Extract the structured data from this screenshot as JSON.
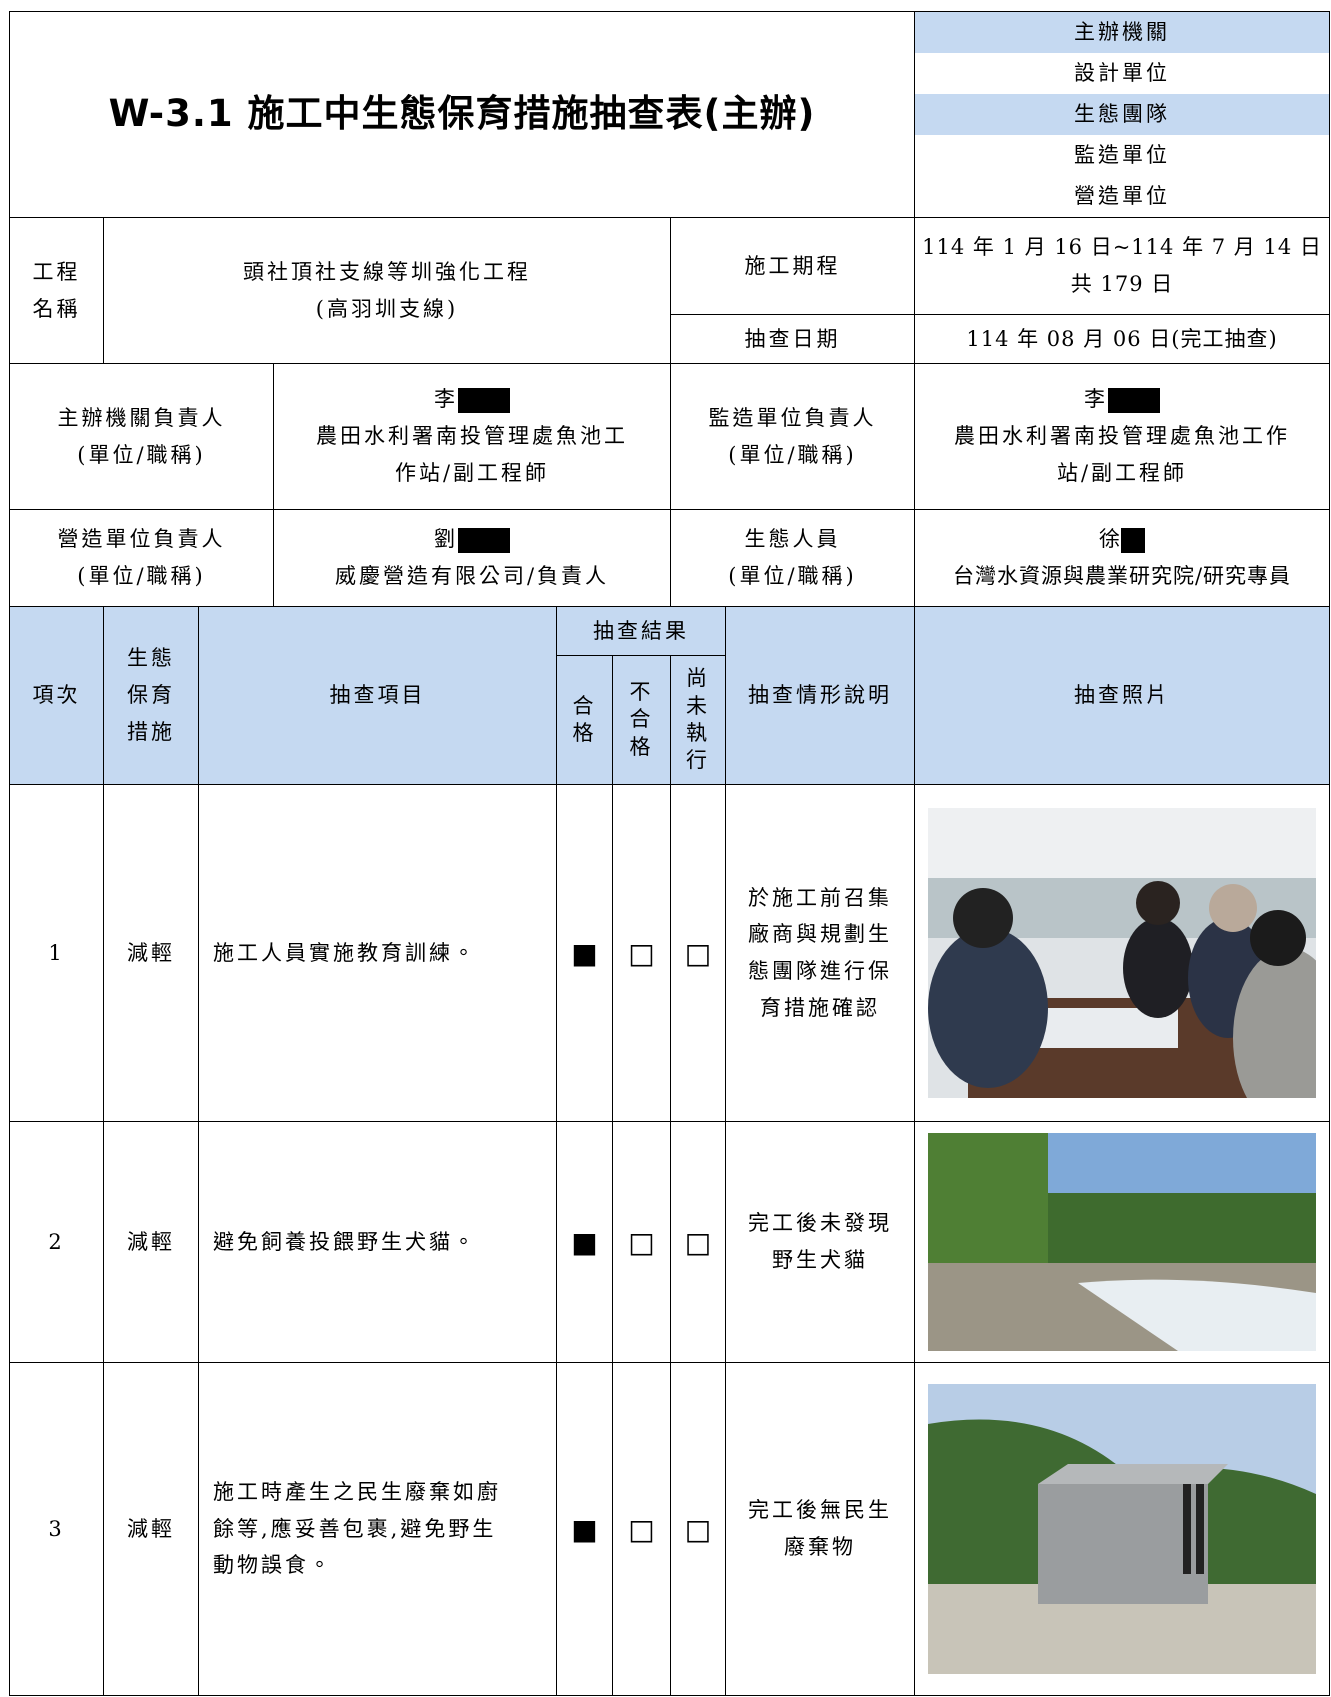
{
  "header": {
    "title": "W-3.1 施工中生態保育措施抽查表(主辦)",
    "units": [
      "主辦機關",
      "設計單位",
      "生態團隊",
      "監造單位",
      "營造單位"
    ]
  },
  "info": {
    "project_name_label": [
      "工程",
      "名稱"
    ],
    "project_name": [
      "頭社頂社支線等圳強化工程",
      "(高羽圳支線)"
    ],
    "period_label": "施工期程",
    "period": [
      "114 年 1 月 16 日~114 年 7 月 14 日",
      "共 179 日"
    ],
    "inspection_date_label": "抽查日期",
    "inspection_date": "114 年 08 月 06 日(完工抽查)",
    "people": [
      {
        "label": [
          "主辦機關負責人",
          "(單位/職稱)"
        ],
        "value": [
          "李",
          "農田水利署南投管理處魚池工",
          "作站/副工程師"
        ]
      },
      {
        "label": [
          "監造單位負責人",
          "(單位/職稱)"
        ],
        "value": [
          "李",
          "農田水利署南投管理處魚池工作",
          "站/副工程師"
        ]
      },
      {
        "label": [
          "營造單位負責人",
          "(單位/職稱)"
        ],
        "value": [
          "劉",
          "威慶營造有限公司/負責人"
        ]
      },
      {
        "label": [
          "生態人員",
          "(單位/職稱)"
        ],
        "value": [
          "徐",
          "台灣水資源與農業研究院/研究專員"
        ]
      }
    ]
  },
  "table": {
    "headers": {
      "item_no": "項次",
      "measure": [
        "生態",
        "保育",
        "措施"
      ],
      "check_item": "抽查項目",
      "result": "抽查結果",
      "pass": [
        "合",
        "格"
      ],
      "fail": [
        "不",
        "合",
        "格"
      ],
      "not_done": [
        "尚",
        "未",
        "執",
        "行"
      ],
      "description": "抽查情形說明",
      "photo": "抽查照片"
    },
    "rows": [
      {
        "no": "1",
        "measure": "減輕",
        "item": [
          "施工人員實施教育訓練。"
        ],
        "pass": "■",
        "fail": "□",
        "not_done": "□",
        "description": [
          "於施工前召集",
          "廠商與規劃生",
          "態團隊進行保",
          "育措施確認"
        ]
      },
      {
        "no": "2",
        "measure": "減輕",
        "item": [
          "避免飼養投餵野生犬貓。"
        ],
        "pass": "■",
        "fail": "□",
        "not_done": "□",
        "description": [
          "完工後未發現",
          "野生犬貓"
        ]
      },
      {
        "no": "3",
        "measure": "減輕",
        "item": [
          "施工時產生之民生廢棄如廚",
          "餘等,應妥善包裹,避免野生",
          "動物誤食。"
        ],
        "pass": "■",
        "fail": "□",
        "not_done": "□",
        "description": [
          "完工後無民生",
          "廢棄物"
        ]
      }
    ]
  }
}
